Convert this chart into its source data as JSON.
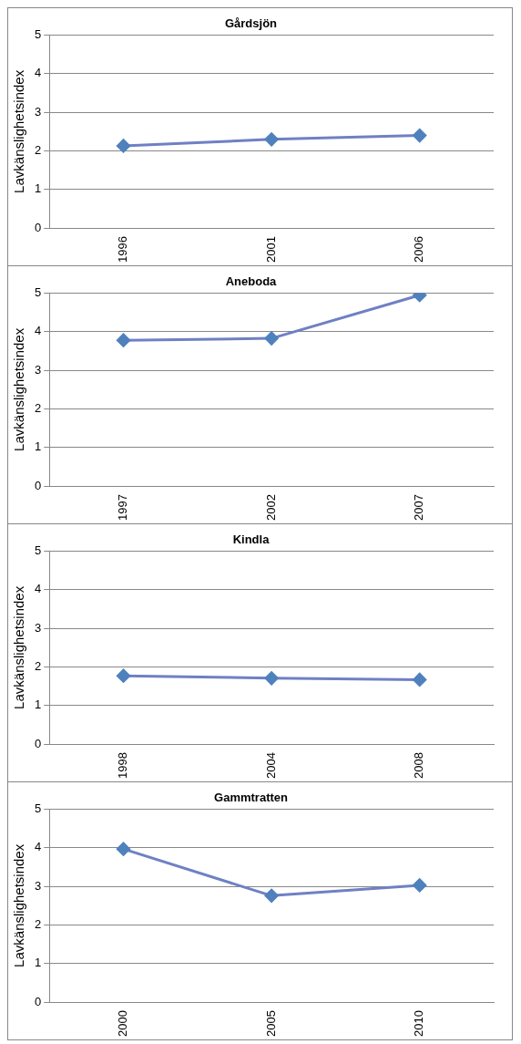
{
  "chart_data": [
    {
      "type": "line",
      "title": "Gårdsjön",
      "ylabel": "Lavkänslighetsindex",
      "categories": [
        "1996",
        "2001",
        "2006"
      ],
      "series": [
        {
          "color": "#6f80c4",
          "values": [
            2.13,
            2.3,
            2.4
          ]
        }
      ],
      "ylim": [
        0,
        5
      ],
      "yticks": [
        0,
        1,
        2,
        3,
        4,
        5
      ],
      "grid": "y",
      "marker": "diamond"
    },
    {
      "type": "line",
      "title": "Aneboda",
      "ylabel": "Lavkänslighetsindex",
      "categories": [
        "1997",
        "2002",
        "2007"
      ],
      "series": [
        {
          "color": "#6f80c4",
          "values": [
            3.78,
            3.83,
            4.95
          ]
        }
      ],
      "ylim": [
        0,
        5
      ],
      "yticks": [
        0,
        1,
        2,
        3,
        4,
        5
      ],
      "grid": "y",
      "marker": "diamond"
    },
    {
      "type": "line",
      "title": "Kindla",
      "ylabel": "Lavkänslighetsindex",
      "categories": [
        "1998",
        "2004",
        "2008"
      ],
      "series": [
        {
          "color": "#6f80c4",
          "values": [
            1.77,
            1.71,
            1.67
          ]
        }
      ],
      "ylim": [
        0,
        5
      ],
      "yticks": [
        0,
        1,
        2,
        3,
        4,
        5
      ],
      "grid": "y",
      "marker": "diamond"
    },
    {
      "type": "line",
      "title": "Gammtratten",
      "ylabel": "Lavkänslighetsindex",
      "categories": [
        "2000",
        "2005",
        "2010"
      ],
      "series": [
        {
          "color": "#6f80c4",
          "values": [
            3.97,
            2.76,
            3.03
          ]
        }
      ],
      "ylim": [
        0,
        5
      ],
      "yticks": [
        0,
        1,
        2,
        3,
        4,
        5
      ],
      "grid": "y",
      "marker": "diamond"
    }
  ]
}
